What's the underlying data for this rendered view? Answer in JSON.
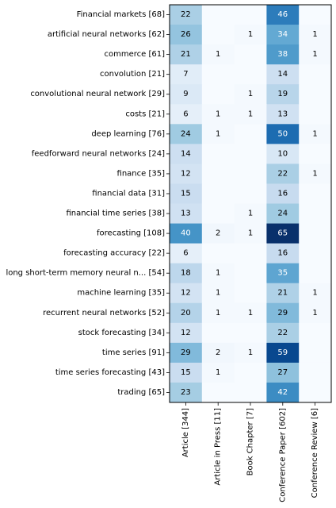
{
  "chart_data": {
    "type": "heatmap",
    "title": "",
    "xlabel": "",
    "ylabel": "",
    "x_categories": [
      "Article [344]",
      "Article in Press [11]",
      "Book Chapter [7]",
      "Conference Paper [602]",
      "Conference Review [6]"
    ],
    "y_categories": [
      "Financial markets [68]",
      "artificial neural networks [62]",
      "commerce [61]",
      "convolution [21]",
      "convolutional neural network [29]",
      "costs [21]",
      "deep learning [76]",
      "feedforward neural networks [24]",
      "finance [35]",
      "financial data [31]",
      "financial time series [38]",
      "forecasting [108]",
      "forecasting accuracy [22]",
      "long short-term memory neural n... [54]",
      "machine learning [35]",
      "recurrent neural networks [52]",
      "stock forecasting [34]",
      "time series [91]",
      "time series forecasting [43]",
      "trading [65]"
    ],
    "values": [
      [
        22,
        0,
        0,
        46,
        0
      ],
      [
        26,
        0,
        1,
        34,
        1
      ],
      [
        21,
        1,
        0,
        38,
        1
      ],
      [
        7,
        0,
        0,
        14,
        0
      ],
      [
        9,
        0,
        1,
        19,
        0
      ],
      [
        6,
        1,
        1,
        13,
        0
      ],
      [
        24,
        1,
        0,
        50,
        1
      ],
      [
        14,
        0,
        0,
        10,
        0
      ],
      [
        12,
        0,
        0,
        22,
        1
      ],
      [
        15,
        0,
        0,
        16,
        0
      ],
      [
        13,
        0,
        1,
        24,
        0
      ],
      [
        40,
        2,
        1,
        65,
        0
      ],
      [
        6,
        0,
        0,
        16,
        0
      ],
      [
        18,
        1,
        0,
        35,
        0
      ],
      [
        12,
        1,
        0,
        21,
        1
      ],
      [
        20,
        1,
        1,
        29,
        1
      ],
      [
        12,
        0,
        0,
        22,
        0
      ],
      [
        29,
        2,
        1,
        59,
        0
      ],
      [
        15,
        1,
        0,
        27,
        0
      ],
      [
        23,
        0,
        0,
        42,
        0
      ]
    ],
    "hide_zero_labels": true,
    "colormap": "Blues",
    "colors": {
      "low": "#f7fbff",
      "high": "#08306b",
      "text_dark": "#000000",
      "text_light": "#ffffff"
    }
  }
}
